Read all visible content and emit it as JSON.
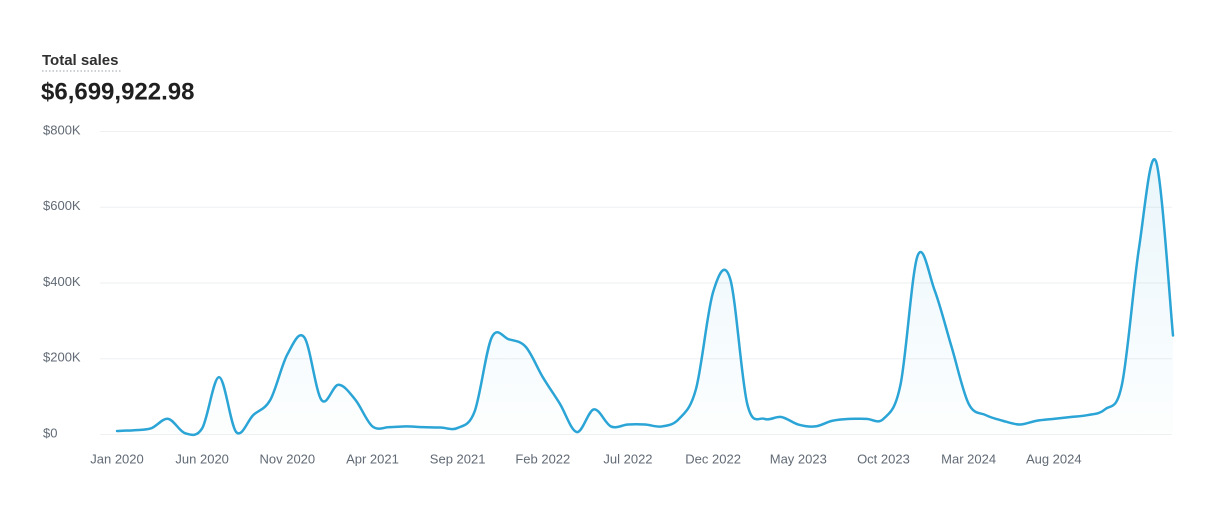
{
  "chart_data": {
    "type": "line",
    "title": "Total sales",
    "total": "$6,699,922.98",
    "color": "#2ba4d6",
    "categories": [
      "Jan 2020",
      null,
      null,
      null,
      null,
      "Jun 2020",
      null,
      null,
      null,
      null,
      "Nov 2020",
      null,
      null,
      null,
      null,
      "Apr 2021",
      null,
      null,
      null,
      null,
      "Sep 2021",
      null,
      null,
      null,
      null,
      "Feb 2022",
      null,
      null,
      null,
      null,
      "Jul 2022",
      null,
      null,
      null,
      null,
      "Dec 2022",
      null,
      null,
      null,
      null,
      "May 2023",
      null,
      null,
      null,
      null,
      "Oct 2023",
      null,
      null,
      null,
      null,
      "Mar 2024",
      null,
      null,
      null,
      null,
      "Aug 2024",
      null,
      null,
      null,
      null,
      null,
      null,
      null
    ],
    "values": [
      8000,
      10000,
      15000,
      40000,
      2000,
      15000,
      150000,
      5000,
      50000,
      90000,
      210000,
      255000,
      90000,
      130000,
      90000,
      20000,
      18000,
      20000,
      18000,
      17000,
      16000,
      60000,
      255000,
      250000,
      230000,
      150000,
      80000,
      5000,
      65000,
      20000,
      25000,
      25000,
      20000,
      40000,
      120000,
      375000,
      410000,
      80000,
      40000,
      45000,
      25000,
      20000,
      35000,
      40000,
      40000,
      40000,
      130000,
      470000,
      380000,
      230000,
      80000,
      50000,
      35000,
      25000,
      35000,
      40000,
      45000,
      50000,
      65000,
      130000,
      490000,
      720000,
      260000
    ],
    "ylim": [
      0,
      800000
    ],
    "yticks": [
      {
        "value": 0,
        "label": "$0"
      },
      {
        "value": 200000,
        "label": "$200K"
      },
      {
        "value": 400000,
        "label": "$400K"
      },
      {
        "value": 600000,
        "label": "$600K"
      },
      {
        "value": 800000,
        "label": "$800K"
      }
    ],
    "grid": true
  }
}
